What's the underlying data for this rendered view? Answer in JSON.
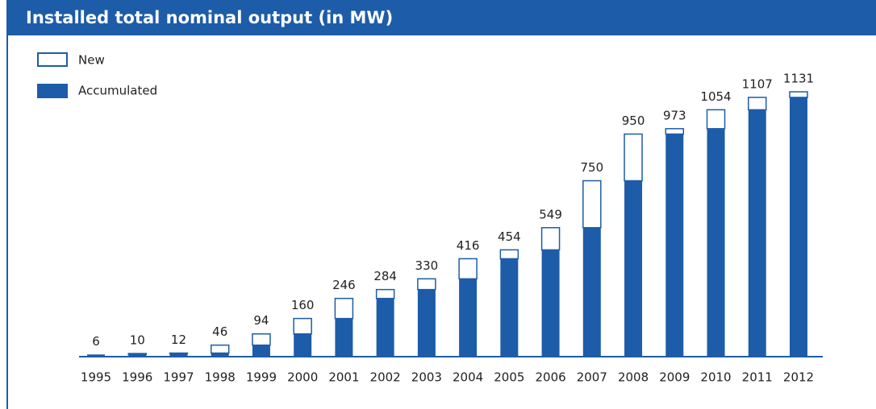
{
  "chart_data": {
    "type": "stacked-bar",
    "title": "Installed total nominal output (in MW)",
    "categories": [
      "1995",
      "1996",
      "1997",
      "1998",
      "1999",
      "2000",
      "2001",
      "2002",
      "2003",
      "2004",
      "2005",
      "2006",
      "2007",
      "2008",
      "2009",
      "2010",
      "2011",
      "2012"
    ],
    "series": [
      {
        "name": "Accumulated",
        "color": "#1d5ca8",
        "values": [
          6,
          6,
          10,
          12,
          46,
          94,
          160,
          246,
          284,
          330,
          416,
          454,
          549,
          750,
          950,
          973,
          1054,
          1107
        ]
      },
      {
        "name": "New",
        "color": "#ffffff",
        "values": [
          0,
          4,
          2,
          34,
          48,
          66,
          86,
          38,
          46,
          86,
          38,
          95,
          201,
          200,
          23,
          81,
          53,
          24
        ]
      }
    ],
    "totals": [
      6,
      10,
      12,
      46,
      94,
      160,
      246,
      284,
      330,
      416,
      454,
      549,
      750,
      950,
      973,
      1054,
      1107,
      1131
    ],
    "ylim": [
      0,
      1200
    ]
  }
}
